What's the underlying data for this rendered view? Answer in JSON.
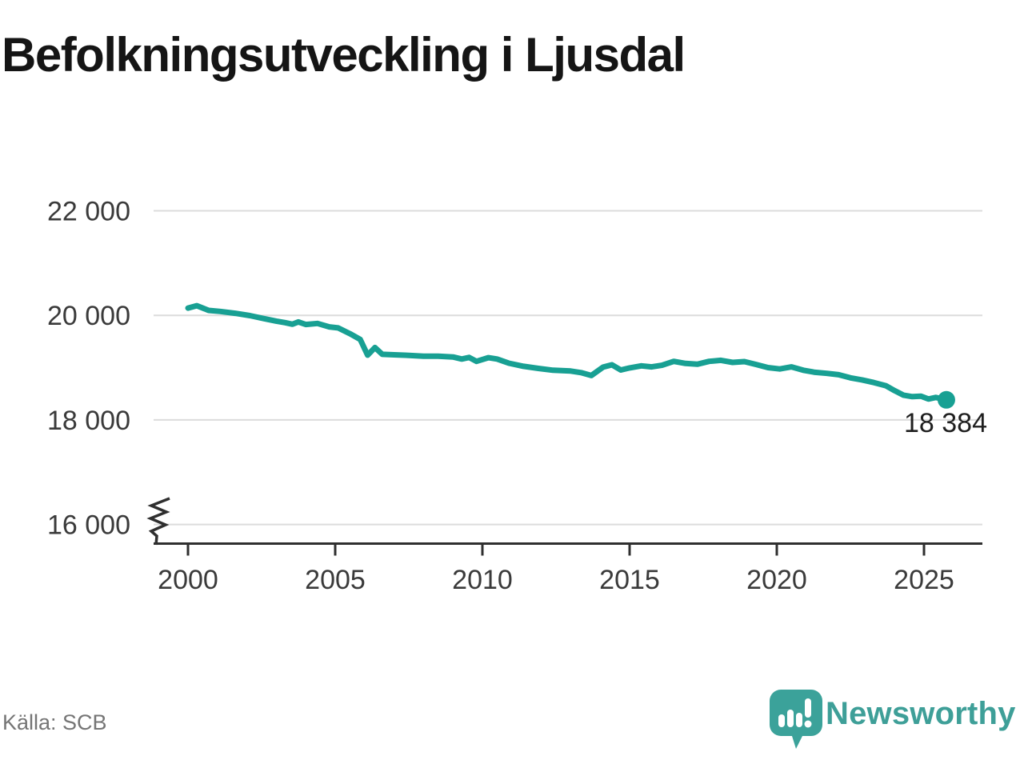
{
  "title": "Befolkningsutveckling i Ljusdal",
  "source": "Källa: SCB",
  "branding": {
    "logo_text": "Newsworthy",
    "logo_icon": "newsworthy-speech-bubble-bar-chart-icon"
  },
  "colors": {
    "background": "#ffffff",
    "line": "#18a093",
    "marker": "#18a093",
    "grid": "#dcdcdc",
    "axis": "#2f2f2f",
    "tick_label": "#3a3a3a",
    "title_text": "#151515",
    "source_text": "#757575",
    "end_label": "#1f1f1f",
    "logo": "#3ba29a"
  },
  "chart_data": {
    "type": "line",
    "title": "Befolkningsutveckling i Ljusdal",
    "xlabel": "",
    "ylabel": "",
    "grid": "horizontal",
    "legend": "none",
    "x_ticks": [
      2000,
      2005,
      2010,
      2015,
      2020,
      2025
    ],
    "x_tick_labels": [
      "2000",
      "2005",
      "2010",
      "2015",
      "2020",
      "2025"
    ],
    "y_ticks": [
      16000,
      18000,
      20000,
      22000
    ],
    "y_tick_labels": [
      "16 000",
      "18 000",
      "20 000",
      "22 000"
    ],
    "xlim": [
      1998.85,
      2027.0
    ],
    "ylim": [
      15650,
      22200
    ],
    "y_axis_break_below": 16000,
    "series": [
      {
        "points": [
          [
            2000.0,
            20140
          ],
          [
            2000.3,
            20185
          ],
          [
            2000.7,
            20095
          ],
          [
            2001.1,
            20075
          ],
          [
            2001.6,
            20040
          ],
          [
            2002.1,
            19995
          ],
          [
            2002.6,
            19935
          ],
          [
            2003.0,
            19890
          ],
          [
            2003.3,
            19860
          ],
          [
            2003.55,
            19830
          ],
          [
            2003.75,
            19875
          ],
          [
            2004.0,
            19825
          ],
          [
            2004.4,
            19845
          ],
          [
            2004.8,
            19780
          ],
          [
            2005.1,
            19760
          ],
          [
            2005.5,
            19650
          ],
          [
            2005.85,
            19540
          ],
          [
            2006.1,
            19240
          ],
          [
            2006.35,
            19385
          ],
          [
            2006.6,
            19255
          ],
          [
            2007.0,
            19245
          ],
          [
            2007.5,
            19235
          ],
          [
            2008.0,
            19220
          ],
          [
            2008.5,
            19220
          ],
          [
            2009.0,
            19205
          ],
          [
            2009.3,
            19165
          ],
          [
            2009.55,
            19195
          ],
          [
            2009.8,
            19120
          ],
          [
            2010.2,
            19190
          ],
          [
            2010.5,
            19165
          ],
          [
            2010.9,
            19085
          ],
          [
            2011.4,
            19025
          ],
          [
            2011.9,
            18985
          ],
          [
            2012.4,
            18950
          ],
          [
            2013.0,
            18935
          ],
          [
            2013.35,
            18905
          ],
          [
            2013.7,
            18850
          ],
          [
            2014.1,
            19010
          ],
          [
            2014.4,
            19055
          ],
          [
            2014.7,
            18955
          ],
          [
            2015.0,
            18995
          ],
          [
            2015.4,
            19035
          ],
          [
            2015.75,
            19015
          ],
          [
            2016.1,
            19045
          ],
          [
            2016.5,
            19120
          ],
          [
            2016.9,
            19080
          ],
          [
            2017.3,
            19065
          ],
          [
            2017.7,
            19120
          ],
          [
            2018.1,
            19140
          ],
          [
            2018.5,
            19100
          ],
          [
            2018.9,
            19115
          ],
          [
            2019.3,
            19060
          ],
          [
            2019.7,
            19000
          ],
          [
            2020.1,
            18975
          ],
          [
            2020.5,
            19015
          ],
          [
            2020.9,
            18950
          ],
          [
            2021.3,
            18910
          ],
          [
            2021.7,
            18890
          ],
          [
            2022.1,
            18865
          ],
          [
            2022.5,
            18805
          ],
          [
            2022.9,
            18765
          ],
          [
            2023.3,
            18715
          ],
          [
            2023.7,
            18655
          ],
          [
            2024.0,
            18560
          ],
          [
            2024.3,
            18475
          ],
          [
            2024.6,
            18445
          ],
          [
            2024.9,
            18455
          ],
          [
            2025.15,
            18400
          ],
          [
            2025.4,
            18430
          ],
          [
            2025.76,
            18384
          ]
        ]
      }
    ],
    "end_point": {
      "x": 2025.76,
      "y": 18384,
      "label": "18 384"
    }
  }
}
